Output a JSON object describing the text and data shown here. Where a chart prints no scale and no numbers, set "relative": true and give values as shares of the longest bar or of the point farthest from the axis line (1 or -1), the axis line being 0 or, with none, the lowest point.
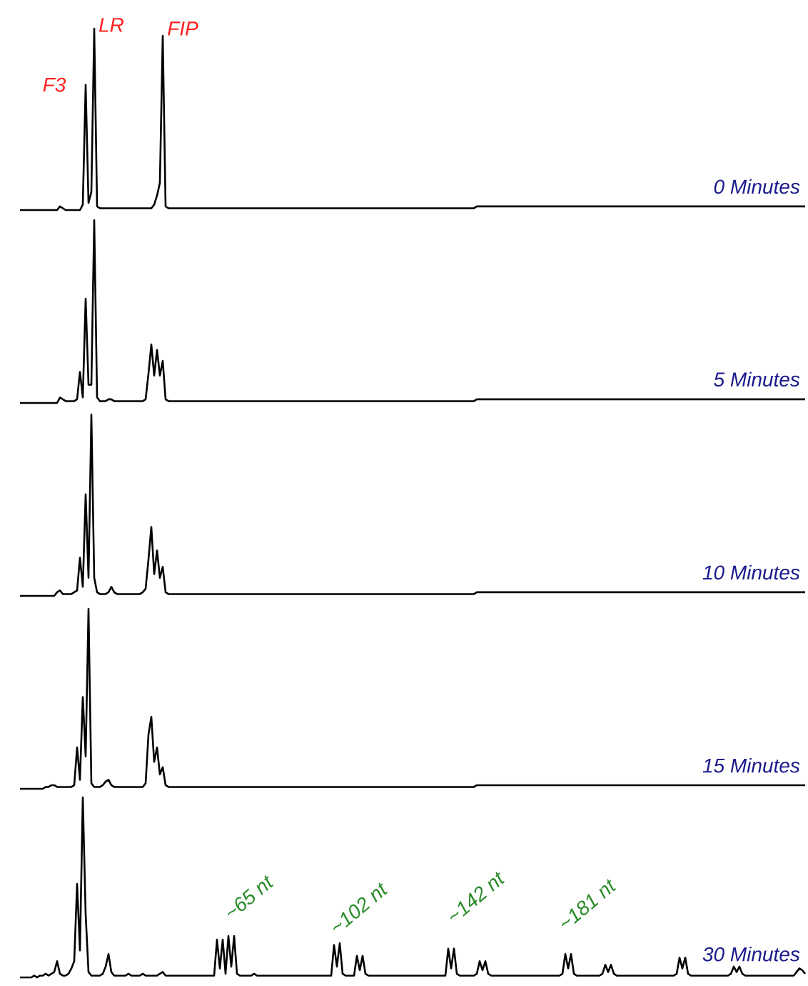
{
  "chart_data": [
    {
      "type": "line",
      "relative": true,
      "title": "0 Minutes",
      "color": "#000000",
      "annotations": [
        "F3",
        "LR",
        "FIP"
      ],
      "categories": [
        null,
        null,
        null,
        null,
        null,
        null,
        null,
        null,
        null,
        null,
        null,
        null,
        null,
        null,
        null,
        null,
        null,
        null,
        null,
        null,
        null,
        null,
        null,
        null,
        null,
        null,
        null,
        null,
        null,
        null,
        null,
        null,
        null,
        null,
        null,
        null,
        null,
        null,
        null,
        null,
        null,
        null,
        null,
        null,
        null,
        null,
        null,
        null,
        null,
        null,
        null,
        null,
        null,
        null,
        null,
        null,
        null,
        null,
        null,
        null,
        null,
        null,
        null,
        null,
        null,
        null,
        null,
        null,
        null,
        null,
        null,
        null,
        null,
        null,
        null,
        null,
        null,
        null,
        null,
        null,
        null,
        null,
        null,
        null,
        null,
        null,
        null,
        null,
        null,
        null,
        null,
        null,
        null,
        null,
        null,
        null,
        null,
        null,
        null,
        null,
        null,
        null,
        null,
        null,
        null,
        null,
        null,
        null,
        null,
        null,
        null,
        null,
        null,
        null,
        null,
        null,
        null,
        null,
        null,
        null,
        null,
        null,
        null,
        null,
        null,
        null,
        null,
        null,
        null,
        null,
        null,
        null,
        null,
        null,
        null,
        null,
        null,
        null,
        null,
        null,
        null,
        null,
        null,
        null,
        null,
        null,
        null,
        null,
        null,
        null,
        null,
        null,
        null,
        null,
        null,
        null,
        null,
        null,
        null,
        null,
        null,
        null,
        null,
        null,
        null,
        null,
        null,
        null,
        null,
        null,
        null,
        null,
        null,
        null,
        null,
        null,
        null,
        null,
        null,
        null,
        null,
        null,
        null,
        null,
        null,
        null,
        null,
        null,
        null,
        null,
        null,
        null,
        null,
        null,
        null,
        null,
        null,
        null,
        null,
        null,
        null,
        null,
        null,
        null,
        null,
        null,
        null,
        null,
        null,
        null,
        null,
        null,
        null,
        null,
        null,
        null,
        null,
        null,
        null,
        null,
        null,
        null,
        null,
        null,
        null,
        null,
        null,
        null,
        null,
        null,
        null,
        null,
        null,
        null,
        null,
        null,
        null,
        null,
        null,
        null,
        null,
        null,
        null,
        null,
        null,
        null,
        null,
        null,
        null,
        null,
        null,
        null,
        null,
        null,
        null,
        null,
        null,
        null,
        null,
        null,
        null,
        null,
        null,
        null,
        null,
        null,
        null,
        null,
        null,
        null,
        null,
        null,
        null,
        null,
        null,
        null
      ],
      "values": [
        0,
        0,
        0,
        0,
        0,
        0,
        0,
        0,
        0,
        0,
        0,
        0,
        0,
        0,
        0.02,
        0.01,
        0,
        0,
        0,
        0,
        0,
        0,
        0.03,
        0.69,
        0.04,
        0.1,
        1,
        0.02,
        0.01,
        0.01,
        0.01,
        0.01,
        0.01,
        0.01,
        0.01,
        0.01,
        0.01,
        0.01,
        0.01,
        0.01,
        0.01,
        0.01,
        0.01,
        0.01,
        0.01,
        0.01,
        0.01,
        0.03,
        0.08,
        0.15,
        0.96,
        0.02,
        0.01,
        0.01,
        0.01,
        0.01,
        0.01,
        0.01,
        0.01,
        0.01,
        0.01,
        0.01,
        0.01,
        0.01,
        0.01,
        0.01,
        0.01,
        0.01,
        0.01,
        0.01,
        0.01,
        0.01,
        0.01,
        0.01,
        0.01,
        0.01,
        0.01,
        0.01,
        0.01,
        0.01,
        0.01,
        0.01,
        0.01,
        0.01,
        0.01,
        0.01,
        0.01,
        0.01,
        0.01,
        0.01,
        0.01,
        0.01,
        0.01,
        0.01,
        0.01,
        0.01,
        0.01,
        0.01,
        0.01,
        0.01,
        0.01,
        0.01,
        0.01,
        0.01,
        0.01,
        0.01,
        0.01,
        0.01,
        0.01,
        0.01,
        0.01,
        0.01,
        0.01,
        0.01,
        0.01,
        0.01,
        0.01,
        0.01,
        0.01,
        0.01,
        0.01,
        0.01,
        0.01,
        0.01,
        0.01,
        0.01,
        0.01,
        0.01,
        0.01,
        0.01,
        0.01,
        0.01,
        0.01,
        0.01,
        0.01,
        0.01,
        0.01,
        0.01,
        0.01,
        0.01,
        0.01,
        0.01,
        0.01,
        0.01,
        0.01,
        0.01,
        0.01,
        0.01,
        0.01,
        0.01,
        0.01,
        0.01,
        0.01,
        0.01,
        0.01,
        0.01,
        0.01,
        0.01,
        0.01,
        0.01,
        0.02,
        0.02,
        0.02,
        0.02,
        0.02,
        0.02,
        0.02,
        0.02,
        0.02,
        0.02,
        0.02,
        0.02,
        0.02,
        0.02,
        0.02,
        0.02,
        0.02,
        0.02,
        0.02,
        0.02,
        0.02,
        0.02,
        0.02,
        0.02,
        0.02,
        0.02,
        0.02,
        0.02,
        0.02,
        0.02,
        0.02,
        0.02,
        0.02,
        0.02,
        0.02,
        0.02,
        0.02,
        0.02,
        0.02,
        0.02,
        0.02,
        0.02,
        0.02,
        0.02,
        0.02,
        0.02,
        0.02,
        0.02,
        0.02,
        0.02,
        0.02,
        0.02,
        0.02,
        0.02,
        0.02,
        0.02,
        0.02,
        0.02,
        0.02,
        0.02,
        0.02,
        0.02,
        0.02,
        0.02,
        0.02,
        0.02,
        0.02,
        0.02,
        0.02,
        0.02,
        0.02,
        0.02,
        0.02,
        0.02,
        0.02,
        0.02,
        0.02,
        0.02,
        0.02,
        0.02,
        0.02,
        0.02,
        0.02,
        0.02,
        0.02,
        0.02,
        0.02,
        0.02,
        0.02,
        0.02,
        0.02,
        0.02,
        0.02,
        0.02,
        0.02,
        0.02,
        0.02,
        0.02,
        0.02,
        0.02,
        0.02,
        0.02,
        0.02,
        0.02,
        0.02,
        0.02,
        0.02,
        0.02,
        0.02,
        0.02,
        0.02,
        0.02,
        0.02,
        0.02,
        0.02,
        0.02
      ]
    },
    {
      "type": "line",
      "relative": true,
      "title": "5 Minutes",
      "color": "#000000",
      "categories": [
        null,
        null,
        null,
        null,
        null,
        null,
        null,
        null,
        null,
        null,
        null,
        null,
        null,
        null,
        null,
        null,
        null,
        null,
        null,
        null,
        null,
        null,
        null,
        null,
        null,
        null,
        null,
        null,
        null,
        null,
        null,
        null,
        null,
        null,
        null,
        null,
        null,
        null,
        null,
        null,
        null,
        null,
        null,
        null,
        null,
        null,
        null,
        null,
        null,
        null,
        null,
        null,
        null,
        null,
        null,
        null,
        null,
        null,
        null,
        null,
        null,
        null,
        null,
        null,
        null,
        null,
        null,
        null,
        null,
        null,
        null,
        null,
        null,
        null,
        null,
        null,
        null,
        null,
        null,
        null,
        null,
        null,
        null,
        null,
        null,
        null,
        null,
        null,
        null,
        null,
        null,
        null,
        null,
        null,
        null,
        null,
        null,
        null,
        null,
        null,
        null,
        null,
        null,
        null,
        null,
        null,
        null,
        null,
        null,
        null,
        null,
        null,
        null,
        null,
        null,
        null,
        null,
        null,
        null,
        null,
        null,
        null,
        null,
        null,
        null,
        null,
        null,
        null,
        null,
        null,
        null,
        null,
        null,
        null,
        null,
        null,
        null,
        null,
        null,
        null,
        null,
        null,
        null,
        null,
        null,
        null,
        null,
        null,
        null,
        null,
        null,
        null,
        null,
        null,
        null,
        null,
        null,
        null,
        null,
        null,
        null,
        null,
        null,
        null,
        null,
        null,
        null,
        null,
        null,
        null,
        null,
        null,
        null,
        null,
        null,
        null,
        null,
        null,
        null,
        null,
        null,
        null,
        null,
        null,
        null,
        null,
        null,
        null,
        null,
        null,
        null,
        null,
        null,
        null,
        null,
        null,
        null,
        null,
        null,
        null,
        null,
        null,
        null,
        null,
        null,
        null,
        null,
        null,
        null,
        null,
        null,
        null,
        null,
        null,
        null,
        null,
        null,
        null,
        null,
        null,
        null,
        null,
        null,
        null,
        null,
        null,
        null,
        null,
        null,
        null,
        null,
        null,
        null,
        null,
        null,
        null,
        null,
        null,
        null,
        null,
        null,
        null,
        null,
        null,
        null,
        null,
        null,
        null,
        null,
        null,
        null,
        null,
        null,
        null,
        null,
        null,
        null,
        null,
        null,
        null,
        null,
        null,
        null,
        null,
        null,
        null,
        null,
        null,
        null,
        null,
        null,
        null,
        null,
        null,
        null,
        null
      ],
      "values": [
        0,
        0,
        0,
        0,
        0,
        0,
        0,
        0,
        0,
        0,
        0,
        0,
        0,
        0,
        0.03,
        0.02,
        0.01,
        0.01,
        0.01,
        0.01,
        0.02,
        0.17,
        0.03,
        0.57,
        0.1,
        0.1,
        1,
        0.03,
        0.01,
        0.01,
        0.01,
        0.02,
        0.02,
        0.01,
        0.01,
        0.01,
        0.01,
        0.01,
        0.01,
        0.01,
        0.01,
        0.01,
        0.01,
        0.01,
        0.02,
        0.16,
        0.32,
        0.15,
        0.29,
        0.15,
        0.23,
        0.02,
        0.01,
        0.01,
        0.01,
        0.01,
        0.01,
        0.01,
        0.01,
        0.01,
        0.01,
        0.01,
        0.01,
        0.01,
        0.01,
        0.01,
        0.01,
        0.01,
        0.01,
        0.01,
        0.01,
        0.01,
        0.01,
        0.01,
        0.01,
        0.01,
        0.01,
        0.01,
        0.01,
        0.01,
        0.01,
        0.01,
        0.01,
        0.01,
        0.01,
        0.01,
        0.01,
        0.01,
        0.01,
        0.01,
        0.01,
        0.01,
        0.01,
        0.01,
        0.01,
        0.01,
        0.01,
        0.01,
        0.01,
        0.01,
        0.01,
        0.01,
        0.01,
        0.01,
        0.01,
        0.01,
        0.01,
        0.01,
        0.01,
        0.01,
        0.01,
        0.01,
        0.01,
        0.01,
        0.01,
        0.01,
        0.01,
        0.01,
        0.01,
        0.01,
        0.01,
        0.01,
        0.01,
        0.01,
        0.01,
        0.01,
        0.01,
        0.01,
        0.01,
        0.01,
        0.01,
        0.01,
        0.01,
        0.01,
        0.01,
        0.01,
        0.01,
        0.01,
        0.01,
        0.01,
        0.01,
        0.01,
        0.01,
        0.01,
        0.01,
        0.01,
        0.01,
        0.01,
        0.01,
        0.01,
        0.01,
        0.01,
        0.01,
        0.01,
        0.01,
        0.01,
        0.01,
        0.01,
        0.01,
        0.01,
        0.02,
        0.02,
        0.02,
        0.02,
        0.02,
        0.02,
        0.02,
        0.02,
        0.02,
        0.02,
        0.02,
        0.02,
        0.02,
        0.02,
        0.02,
        0.02,
        0.02,
        0.02,
        0.02,
        0.02,
        0.02,
        0.02,
        0.02,
        0.02,
        0.02,
        0.02,
        0.02,
        0.02,
        0.02,
        0.02,
        0.02,
        0.02,
        0.02,
        0.02,
        0.02,
        0.02,
        0.02,
        0.02,
        0.02,
        0.02,
        0.02,
        0.02,
        0.02,
        0.02,
        0.02,
        0.02,
        0.02,
        0.02,
        0.02,
        0.02,
        0.02,
        0.02,
        0.02,
        0.02,
        0.02,
        0.02,
        0.02,
        0.02,
        0.02,
        0.02,
        0.02,
        0.02,
        0.02,
        0.02,
        0.02,
        0.02,
        0.02,
        0.02,
        0.02,
        0.02,
        0.02,
        0.02,
        0.02,
        0.02,
        0.02,
        0.02,
        0.02,
        0.02,
        0.02,
        0.02,
        0.02,
        0.02,
        0.02,
        0.02,
        0.02,
        0.02,
        0.02,
        0.02,
        0.02,
        0.02,
        0.02,
        0.02,
        0.02,
        0.02,
        0.02,
        0.02,
        0.02,
        0.02,
        0.02,
        0.02,
        0.02,
        0.02,
        0.02,
        0.02,
        0.02,
        0.02,
        0.02,
        0.02,
        0.02,
        0.02,
        0.02,
        0.02,
        0.02,
        0.02,
        0.02,
        0.02
      ]
    },
    {
      "type": "line",
      "relative": true,
      "title": "10 Minutes",
      "color": "#000000",
      "categories": [
        null,
        null,
        null,
        null,
        null,
        null,
        null,
        null,
        null,
        null,
        null,
        null,
        null,
        null,
        null,
        null,
        null,
        null,
        null,
        null,
        null,
        null,
        null,
        null,
        null,
        null,
        null,
        null,
        null,
        null,
        null,
        null,
        null,
        null,
        null,
        null,
        null,
        null,
        null,
        null,
        null,
        null,
        null,
        null,
        null,
        null,
        null,
        null,
        null,
        null,
        null,
        null,
        null,
        null,
        null,
        null,
        null,
        null,
        null,
        null,
        null,
        null,
        null,
        null,
        null,
        null,
        null,
        null,
        null,
        null,
        null,
        null,
        null,
        null,
        null,
        null,
        null,
        null,
        null,
        null,
        null,
        null,
        null,
        null,
        null,
        null,
        null,
        null,
        null,
        null,
        null,
        null,
        null,
        null,
        null,
        null,
        null,
        null,
        null,
        null,
        null,
        null,
        null,
        null,
        null,
        null,
        null,
        null,
        null,
        null,
        null,
        null,
        null,
        null,
        null,
        null,
        null,
        null,
        null,
        null,
        null,
        null,
        null,
        null,
        null,
        null,
        null,
        null,
        null,
        null,
        null,
        null,
        null,
        null,
        null,
        null,
        null,
        null,
        null,
        null,
        null,
        null,
        null,
        null,
        null,
        null,
        null,
        null,
        null,
        null,
        null,
        null,
        null,
        null,
        null,
        null,
        null,
        null,
        null,
        null,
        null,
        null,
        null,
        null,
        null,
        null,
        null,
        null,
        null,
        null,
        null,
        null,
        null,
        null,
        null,
        null,
        null,
        null,
        null,
        null,
        null,
        null,
        null,
        null,
        null,
        null,
        null,
        null,
        null,
        null,
        null,
        null,
        null,
        null,
        null,
        null,
        null,
        null,
        null,
        null,
        null,
        null,
        null,
        null,
        null,
        null,
        null,
        null,
        null,
        null,
        null,
        null,
        null,
        null,
        null,
        null,
        null,
        null,
        null,
        null,
        null,
        null,
        null,
        null,
        null,
        null,
        null,
        null,
        null,
        null,
        null,
        null,
        null,
        null,
        null,
        null,
        null,
        null,
        null,
        null,
        null,
        null,
        null,
        null,
        null,
        null,
        null,
        null,
        null,
        null,
        null,
        null,
        null,
        null,
        null,
        null,
        null,
        null,
        null,
        null,
        null,
        null,
        null,
        null,
        null,
        null,
        null,
        null,
        null,
        null,
        null,
        null,
        null,
        null,
        null,
        null
      ],
      "values": [
        0,
        0,
        0,
        0,
        0,
        0,
        0,
        0,
        0,
        0,
        0,
        0,
        0,
        0.02,
        0.03,
        0.01,
        0.01,
        0.01,
        0.01,
        0.02,
        0.03,
        0.21,
        0.05,
        0.56,
        0.1,
        1,
        0.1,
        0.02,
        0.01,
        0.01,
        0.01,
        0.02,
        0.05,
        0.02,
        0.01,
        0.01,
        0.01,
        0.01,
        0.01,
        0.01,
        0.01,
        0.01,
        0.01,
        0.02,
        0.04,
        0.2,
        0.38,
        0.12,
        0.25,
        0.1,
        0.16,
        0.02,
        0.01,
        0.01,
        0.01,
        0.01,
        0.01,
        0.01,
        0.01,
        0.01,
        0.01,
        0.01,
        0.01,
        0.01,
        0.01,
        0.01,
        0.01,
        0.01,
        0.01,
        0.01,
        0.01,
        0.01,
        0.01,
        0.01,
        0.01,
        0.01,
        0.01,
        0.01,
        0.01,
        0.01,
        0.01,
        0.01,
        0.01,
        0.01,
        0.01,
        0.01,
        0.01,
        0.01,
        0.01,
        0.01,
        0.01,
        0.01,
        0.01,
        0.01,
        0.01,
        0.01,
        0.01,
        0.01,
        0.01,
        0.01,
        0.01,
        0.01,
        0.01,
        0.01,
        0.01,
        0.01,
        0.01,
        0.01,
        0.01,
        0.01,
        0.01,
        0.01,
        0.01,
        0.01,
        0.01,
        0.01,
        0.01,
        0.01,
        0.01,
        0.01,
        0.01,
        0.01,
        0.01,
        0.01,
        0.01,
        0.01,
        0.01,
        0.01,
        0.01,
        0.01,
        0.01,
        0.01,
        0.01,
        0.01,
        0.01,
        0.01,
        0.01,
        0.01,
        0.01,
        0.01,
        0.01,
        0.01,
        0.01,
        0.01,
        0.01,
        0.01,
        0.01,
        0.01,
        0.01,
        0.01,
        0.01,
        0.01,
        0.01,
        0.01,
        0.01,
        0.01,
        0.01,
        0.01,
        0.01,
        0.01,
        0.02,
        0.02,
        0.02,
        0.02,
        0.02,
        0.02,
        0.02,
        0.02,
        0.02,
        0.02,
        0.02,
        0.02,
        0.02,
        0.02,
        0.02,
        0.02,
        0.02,
        0.02,
        0.02,
        0.02,
        0.02,
        0.02,
        0.02,
        0.02,
        0.02,
        0.02,
        0.02,
        0.02,
        0.02,
        0.02,
        0.02,
        0.02,
        0.02,
        0.02,
        0.02,
        0.02,
        0.02,
        0.02,
        0.02,
        0.02,
        0.02,
        0.02,
        0.02,
        0.02,
        0.02,
        0.02,
        0.02,
        0.02,
        0.02,
        0.02,
        0.02,
        0.02,
        0.02,
        0.02,
        0.02,
        0.02,
        0.02,
        0.02,
        0.02,
        0.02,
        0.02,
        0.02,
        0.02,
        0.02,
        0.02,
        0.02,
        0.02,
        0.02,
        0.02,
        0.02,
        0.02,
        0.02,
        0.02,
        0.02,
        0.02,
        0.02,
        0.02,
        0.02,
        0.02,
        0.02,
        0.02,
        0.02,
        0.02,
        0.02,
        0.02,
        0.02,
        0.02,
        0.02,
        0.02,
        0.02,
        0.02,
        0.02,
        0.02,
        0.02,
        0.02,
        0.02,
        0.02,
        0.02,
        0.02,
        0.02,
        0.02,
        0.02,
        0.02,
        0.02,
        0.02,
        0.02,
        0.02,
        0.02,
        0.02,
        0.02,
        0.02,
        0.02,
        0.02,
        0.02,
        0.02,
        0.02
      ]
    },
    {
      "type": "line",
      "relative": true,
      "title": "15 Minutes",
      "color": "#000000",
      "categories": [
        null,
        null,
        null,
        null,
        null,
        null,
        null,
        null,
        null,
        null,
        null,
        null,
        null,
        null,
        null,
        null,
        null,
        null,
        null,
        null,
        null,
        null,
        null,
        null,
        null,
        null,
        null,
        null,
        null,
        null,
        null,
        null,
        null,
        null,
        null,
        null,
        null,
        null,
        null,
        null,
        null,
        null,
        null,
        null,
        null,
        null,
        null,
        null,
        null,
        null,
        null,
        null,
        null,
        null,
        null,
        null,
        null,
        null,
        null,
        null,
        null,
        null,
        null,
        null,
        null,
        null,
        null,
        null,
        null,
        null,
        null,
        null,
        null,
        null,
        null,
        null,
        null,
        null,
        null,
        null,
        null,
        null,
        null,
        null,
        null,
        null,
        null,
        null,
        null,
        null,
        null,
        null,
        null,
        null,
        null,
        null,
        null,
        null,
        null,
        null,
        null,
        null,
        null,
        null,
        null,
        null,
        null,
        null,
        null,
        null,
        null,
        null,
        null,
        null,
        null,
        null,
        null,
        null,
        null,
        null,
        null,
        null,
        null,
        null,
        null,
        null,
        null,
        null,
        null,
        null,
        null,
        null,
        null,
        null,
        null,
        null,
        null,
        null,
        null,
        null,
        null,
        null,
        null,
        null,
        null,
        null,
        null,
        null,
        null,
        null,
        null,
        null,
        null,
        null,
        null,
        null,
        null,
        null,
        null,
        null,
        null,
        null,
        null,
        null,
        null,
        null,
        null,
        null,
        null,
        null,
        null,
        null,
        null,
        null,
        null,
        null,
        null,
        null,
        null,
        null,
        null,
        null,
        null,
        null,
        null,
        null,
        null,
        null,
        null,
        null,
        null,
        null,
        null,
        null,
        null,
        null,
        null,
        null,
        null,
        null,
        null,
        null,
        null,
        null,
        null,
        null,
        null,
        null,
        null,
        null,
        null,
        null,
        null,
        null,
        null,
        null,
        null,
        null,
        null,
        null,
        null,
        null,
        null,
        null,
        null,
        null,
        null,
        null,
        null,
        null,
        null,
        null,
        null,
        null,
        null,
        null,
        null,
        null,
        null,
        null,
        null,
        null,
        null,
        null,
        null,
        null,
        null,
        null,
        null,
        null,
        null,
        null,
        null,
        null,
        null,
        null,
        null,
        null,
        null,
        null,
        null,
        null,
        null,
        null,
        null,
        null,
        null,
        null,
        null,
        null,
        null,
        null,
        null,
        null,
        null,
        null
      ],
      "values": [
        0,
        0,
        0,
        0,
        0,
        0,
        0,
        0,
        0,
        0.01,
        0.01,
        0.02,
        0.02,
        0.01,
        0.01,
        0.01,
        0.01,
        0.01,
        0.01,
        0.02,
        0.23,
        0.05,
        0.51,
        0.18,
        1,
        0.03,
        0.01,
        0.01,
        0.01,
        0.02,
        0.04,
        0.05,
        0.02,
        0.01,
        0.01,
        0.01,
        0.01,
        0.01,
        0.01,
        0.01,
        0.01,
        0.01,
        0.01,
        0.01,
        0.03,
        0.3,
        0.4,
        0.15,
        0.23,
        0.08,
        0.12,
        0.02,
        0.01,
        0.01,
        0.01,
        0.01,
        0.01,
        0.01,
        0.01,
        0.01,
        0.01,
        0.01,
        0.01,
        0.01,
        0.01,
        0.01,
        0.01,
        0.01,
        0.01,
        0.01,
        0.01,
        0.01,
        0.01,
        0.01,
        0.01,
        0.01,
        0.01,
        0.01,
        0.01,
        0.01,
        0.01,
        0.01,
        0.01,
        0.01,
        0.01,
        0.01,
        0.01,
        0.01,
        0.01,
        0.01,
        0.01,
        0.01,
        0.01,
        0.01,
        0.01,
        0.01,
        0.01,
        0.01,
        0.01,
        0.01,
        0.01,
        0.01,
        0.01,
        0.01,
        0.01,
        0.01,
        0.01,
        0.01,
        0.01,
        0.01,
        0.01,
        0.01,
        0.01,
        0.01,
        0.01,
        0.01,
        0.01,
        0.01,
        0.01,
        0.01,
        0.01,
        0.01,
        0.01,
        0.01,
        0.01,
        0.01,
        0.01,
        0.01,
        0.01,
        0.01,
        0.01,
        0.01,
        0.01,
        0.01,
        0.01,
        0.01,
        0.01,
        0.01,
        0.01,
        0.01,
        0.01,
        0.01,
        0.01,
        0.01,
        0.01,
        0.01,
        0.01,
        0.01,
        0.01,
        0.01,
        0.01,
        0.01,
        0.01,
        0.01,
        0.01,
        0.01,
        0.01,
        0.01,
        0.01,
        0.01,
        0.02,
        0.02,
        0.02,
        0.02,
        0.02,
        0.02,
        0.02,
        0.02,
        0.02,
        0.02,
        0.02,
        0.02,
        0.02,
        0.02,
        0.02,
        0.02,
        0.02,
        0.02,
        0.02,
        0.02,
        0.02,
        0.02,
        0.02,
        0.02,
        0.02,
        0.02,
        0.02,
        0.02,
        0.02,
        0.02,
        0.02,
        0.02,
        0.02,
        0.02,
        0.02,
        0.02,
        0.02,
        0.02,
        0.02,
        0.02,
        0.02,
        0.02,
        0.02,
        0.02,
        0.02,
        0.02,
        0.02,
        0.02,
        0.02,
        0.02,
        0.02,
        0.02,
        0.02,
        0.02,
        0.02,
        0.02,
        0.02,
        0.02,
        0.02,
        0.02,
        0.02,
        0.02,
        0.02,
        0.02,
        0.02,
        0.02,
        0.02,
        0.02,
        0.02,
        0.02,
        0.02,
        0.02,
        0.02,
        0.02,
        0.02,
        0.02,
        0.02,
        0.02,
        0.02,
        0.02,
        0.02,
        0.02,
        0.02,
        0.02,
        0.02,
        0.02,
        0.02,
        0.02,
        0.02,
        0.02,
        0.02,
        0.02,
        0.02,
        0.02,
        0.02,
        0.02,
        0.02,
        0.02,
        0.02,
        0.02,
        0.02,
        0.02,
        0.02,
        0.02,
        0.02,
        0.02,
        0.02,
        0.02,
        0.02,
        0.02,
        0.02,
        0.02,
        0.02,
        0.02,
        0.02,
        0.02
      ]
    },
    {
      "type": "line",
      "relative": true,
      "title": "30 Minutes",
      "color": "#000000",
      "annotations": [
        "~65 nt",
        "~102 nt",
        "~142 nt",
        "~181 nt"
      ],
      "categories": [
        null,
        null,
        null,
        null,
        null,
        null,
        null,
        null,
        null,
        null,
        null,
        null,
        null,
        null,
        null,
        null,
        null,
        null,
        null,
        null,
        null,
        null,
        null,
        null,
        null,
        null,
        null,
        null,
        null,
        null,
        null,
        null,
        null,
        null,
        null,
        null,
        null,
        null,
        null,
        null,
        null,
        null,
        null,
        null,
        null,
        null,
        null,
        null,
        null,
        null,
        null,
        null,
        null,
        null,
        null,
        null,
        null,
        null,
        null,
        null,
        null,
        null,
        null,
        null,
        null,
        null,
        null,
        null,
        null,
        null,
        null,
        null,
        null,
        null,
        null,
        null,
        null,
        null,
        null,
        null,
        null,
        null,
        null,
        null,
        null,
        null,
        null,
        null,
        null,
        null,
        null,
        null,
        null,
        null,
        null,
        null,
        null,
        null,
        null,
        null,
        null,
        null,
        null,
        null,
        null,
        null,
        null,
        null,
        null,
        null,
        null,
        null,
        null,
        null,
        null,
        null,
        null,
        null,
        null,
        null,
        null,
        null,
        null,
        null,
        null,
        null,
        null,
        null,
        null,
        null,
        null,
        null,
        null,
        null,
        null,
        null,
        null,
        null,
        null,
        null,
        null,
        null,
        null,
        null,
        null,
        null,
        null,
        null,
        null,
        null,
        null,
        null,
        null,
        null,
        null,
        null,
        null,
        null,
        null,
        null,
        null,
        null,
        null,
        null,
        null,
        null,
        null,
        null,
        null,
        null,
        null,
        null,
        null,
        null,
        null,
        null,
        null,
        null,
        null,
        null,
        null,
        null,
        null,
        null,
        null,
        null,
        null,
        null,
        null,
        null,
        null,
        null,
        null,
        null,
        null,
        null,
        null,
        null,
        null,
        null,
        null,
        null,
        null,
        null,
        null,
        null,
        null,
        null,
        null,
        null,
        null,
        null,
        null,
        null,
        null,
        null,
        null,
        null,
        null,
        null,
        null,
        null,
        null,
        null,
        null,
        null,
        null,
        null,
        null,
        null,
        null,
        null,
        null,
        null,
        null,
        null,
        null,
        null,
        null,
        null,
        null,
        null,
        null,
        null,
        null,
        null,
        null,
        null,
        null,
        null,
        null,
        null,
        null,
        null,
        null,
        null,
        null,
        null,
        null,
        null,
        null,
        null,
        null,
        null,
        null,
        null,
        null,
        null,
        null,
        null,
        null,
        null,
        null,
        null,
        null,
        null
      ],
      "values": [
        0,
        0,
        0,
        0,
        0,
        0.01,
        0,
        0.01,
        0.01,
        0.02,
        0.01,
        0.02,
        0.03,
        0.09,
        0.02,
        0.01,
        0.01,
        0.02,
        0.05,
        0.09,
        0.52,
        0.15,
        1,
        0.35,
        0.03,
        0.01,
        0.01,
        0.01,
        0.01,
        0.02,
        0.06,
        0.13,
        0.03,
        0.01,
        0.01,
        0.01,
        0.01,
        0.01,
        0.02,
        0.01,
        0.01,
        0.01,
        0.01,
        0.02,
        0.01,
        0.01,
        0.01,
        0.01,
        0.01,
        0.02,
        0.03,
        0.01,
        0.01,
        0.01,
        0.01,
        0.01,
        0.01,
        0.01,
        0.01,
        0.01,
        0.01,
        0.01,
        0.01,
        0.01,
        0.01,
        0.01,
        0.01,
        0.01,
        0.01,
        0.21,
        0.05,
        0.21,
        0.02,
        0.23,
        0.06,
        0.23,
        0.02,
        0.01,
        0.01,
        0.01,
        0.01,
        0.01,
        0.02,
        0.01,
        0.01,
        0.01,
        0.01,
        0.01,
        0.01,
        0.01,
        0.01,
        0.01,
        0.01,
        0.01,
        0.01,
        0.01,
        0.01,
        0.01,
        0.01,
        0.01,
        0.01,
        0.01,
        0.01,
        0.01,
        0.01,
        0.01,
        0.01,
        0.01,
        0.01,
        0.01,
        0.18,
        0.06,
        0.19,
        0.02,
        0.01,
        0.01,
        0.01,
        0.01,
        0.12,
        0.04,
        0.12,
        0.02,
        0.01,
        0.01,
        0.01,
        0.01,
        0.01,
        0.01,
        0.01,
        0.01,
        0.01,
        0.01,
        0.01,
        0.01,
        0.01,
        0.01,
        0.01,
        0.01,
        0.01,
        0.01,
        0.01,
        0.01,
        0.01,
        0.01,
        0.01,
        0.01,
        0.01,
        0.01,
        0.01,
        0.01,
        0.16,
        0.05,
        0.16,
        0.02,
        0.01,
        0.01,
        0.01,
        0.01,
        0.01,
        0.01,
        0.02,
        0.09,
        0.04,
        0.09,
        0.02,
        0.01,
        0.01,
        0.01,
        0.01,
        0.01,
        0.01,
        0.01,
        0.01,
        0.01,
        0.01,
        0.01,
        0.01,
        0.01,
        0.01,
        0.01,
        0.01,
        0.01,
        0.01,
        0.01,
        0.01,
        0.01,
        0.01,
        0.01,
        0.01,
        0.01,
        0.02,
        0.13,
        0.05,
        0.13,
        0.02,
        0.01,
        0.01,
        0.01,
        0.01,
        0.01,
        0.01,
        0.01,
        0.01,
        0.01,
        0.02,
        0.07,
        0.03,
        0.07,
        0.02,
        0.01,
        0.01,
        0.01,
        0.01,
        0.01,
        0.01,
        0.01,
        0.01,
        0.01,
        0.01,
        0.01,
        0.01,
        0.01,
        0.01,
        0.01,
        0.01,
        0.01,
        0.01,
        0.01,
        0.01,
        0.01,
        0.02,
        0.11,
        0.05,
        0.11,
        0.02,
        0.01,
        0.01,
        0.01,
        0.01,
        0.01,
        0.01,
        0.01,
        0.01,
        0.01,
        0.01,
        0.01,
        0.01,
        0.01,
        0.01,
        0.02,
        0.06,
        0.03,
        0.06,
        0.02,
        0.01,
        0.01,
        0.01,
        0.01,
        0.01,
        0.01,
        0.01,
        0.01,
        0.01,
        0.01,
        0.01,
        0.01,
        0.01,
        0.01,
        0.01,
        0.01,
        0.01,
        0.01,
        0.03,
        0.05,
        0.04,
        0.02
      ]
    }
  ]
}
